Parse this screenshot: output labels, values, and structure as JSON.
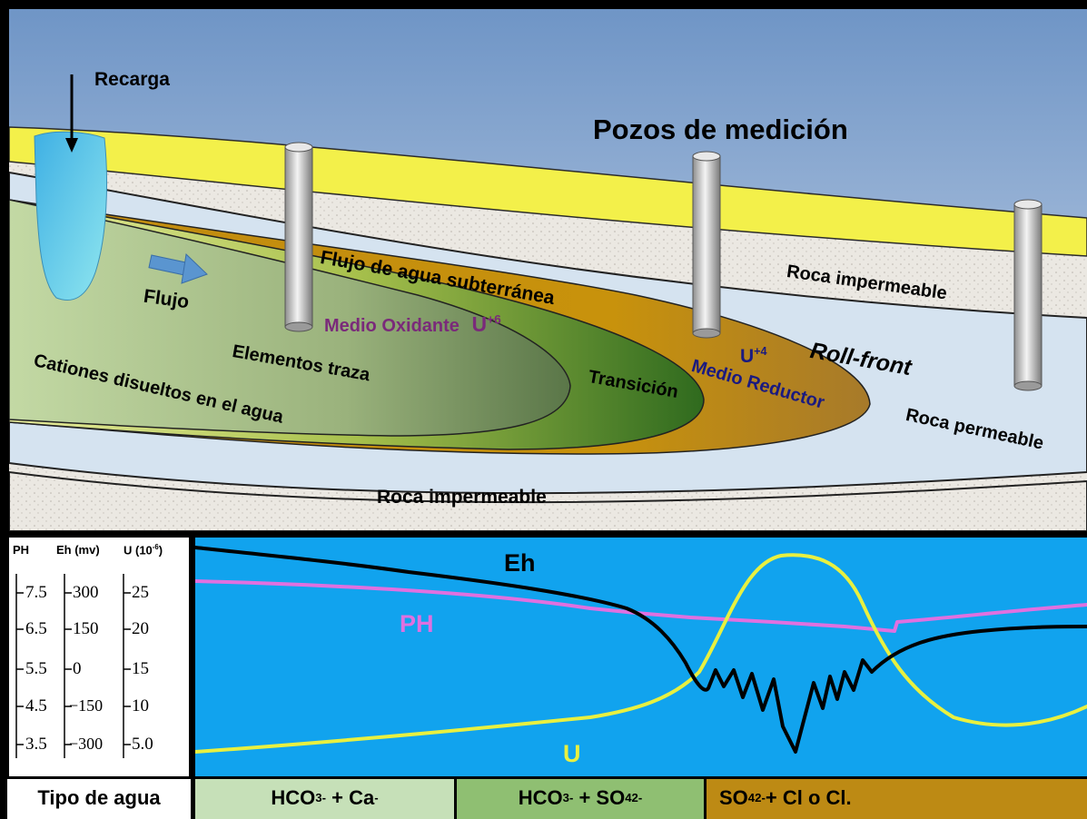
{
  "cross_section": {
    "title": "Pozos de medición",
    "recharge": "Recarga",
    "flow": "Flujo",
    "groundwater_flow": "Flujo de agua subterránea",
    "upper_rock": "Roca impermeable",
    "lower_rock": "Roca impermeable",
    "permeable_rock": "Roca permeable",
    "roll_front": "Roll-front",
    "oxidizing": "Medio Oxidante",
    "u6": "U",
    "u6_sup": "+6",
    "trace": "Elementos traza",
    "cations": "Cationes disueltos en el agua",
    "transition": "Transición",
    "u4": "U",
    "u4_sup": "+4",
    "reducing": "Medio Reductor"
  },
  "scales": {
    "ph_header": "PH",
    "eh_header": "Eh (mv)",
    "u_header": "U (10",
    "u_header_sup": "-6",
    "u_header_close": ")",
    "ph_ticks": [
      "7.5",
      "6.5",
      "5.5",
      "4.5",
      "3.5"
    ],
    "eh_ticks": [
      "300",
      "150",
      "0",
      "−150",
      "−300"
    ],
    "u_ticks": [
      "25",
      "20",
      "15",
      "10",
      "5.0"
    ]
  },
  "profile_chart": {
    "series": [
      {
        "name": "Eh",
        "color": "#000000"
      },
      {
        "name": "PH",
        "color": "#e070e0"
      },
      {
        "name": "U",
        "color": "#e8f040"
      }
    ]
  },
  "water_types": {
    "label": "Tipo de agua",
    "t1": {
      "a": "HCO",
      "a_sub": "3",
      "a_sup": "-",
      "b": " + Ca",
      "b_sup": "-"
    },
    "t2": {
      "a": "HCO",
      "a_sub": "3",
      "a_sup": "-",
      "b": " + SO",
      "b_sub": "4",
      "b_sup": "2-"
    },
    "t3": {
      "a": "SO",
      "a_sub": "4",
      "a_sup": "2-",
      "b": "+ Cl o Cl."
    }
  }
}
